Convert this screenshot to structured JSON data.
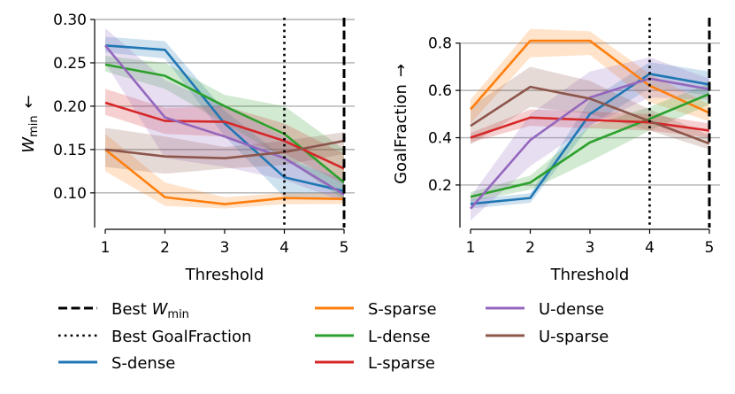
{
  "chart_data": [
    {
      "type": "line",
      "panel": "left",
      "ylabel": "W",
      "ylabel_sub": "min",
      "ylabel_arrow": "←",
      "xlabel": "Threshold",
      "x": [
        1,
        2,
        3,
        4,
        5
      ],
      "x_ticks": [
        "1",
        "2",
        "3",
        "4",
        "5"
      ],
      "ylim": [
        0.06,
        0.3
      ],
      "y_ticks": [
        0.1,
        0.15,
        0.2,
        0.25,
        0.3
      ],
      "y_tick_labels": [
        "0.10",
        "0.15",
        "0.20",
        "0.25",
        "0.30"
      ],
      "grid": "horizontal",
      "vlines": [
        {
          "x": 4,
          "style": "dotted",
          "meaning": "Best GoalFraction"
        },
        {
          "x": 5,
          "style": "dashed",
          "meaning": "Best W_min"
        }
      ],
      "series": [
        {
          "name": "S-dense",
          "color": "#1f77b4",
          "values": [
            0.27,
            0.265,
            0.18,
            0.118,
            0.102
          ],
          "lower": [
            0.262,
            0.255,
            0.165,
            0.095,
            0.092
          ],
          "upper": [
            0.28,
            0.275,
            0.195,
            0.14,
            0.115
          ]
        },
        {
          "name": "S-sparse",
          "color": "#ff7f0e",
          "values": [
            0.15,
            0.095,
            0.087,
            0.094,
            0.093
          ],
          "lower": [
            0.125,
            0.085,
            0.082,
            0.087,
            0.087
          ],
          "upper": [
            0.168,
            0.112,
            0.095,
            0.1,
            0.1
          ]
        },
        {
          "name": "L-dense",
          "color": "#2ca02c",
          "values": [
            0.248,
            0.235,
            0.2,
            0.168,
            0.112
          ],
          "lower": [
            0.24,
            0.22,
            0.18,
            0.14,
            0.092
          ],
          "upper": [
            0.258,
            0.25,
            0.213,
            0.2,
            0.15
          ]
        },
        {
          "name": "L-sparse",
          "color": "#d62728",
          "values": [
            0.204,
            0.183,
            0.182,
            0.16,
            0.128
          ],
          "lower": [
            0.19,
            0.168,
            0.165,
            0.145,
            0.11
          ],
          "upper": [
            0.22,
            0.198,
            0.2,
            0.18,
            0.145
          ]
        },
        {
          "name": "U-dense",
          "color": "#9467bd",
          "values": [
            0.27,
            0.187,
            0.165,
            0.14,
            0.098
          ],
          "lower": [
            0.25,
            0.14,
            0.13,
            0.115,
            0.09
          ],
          "upper": [
            0.29,
            0.23,
            0.2,
            0.165,
            0.112
          ]
        },
        {
          "name": "U-sparse",
          "color": "#8c564b",
          "values": [
            0.15,
            0.142,
            0.14,
            0.147,
            0.16
          ],
          "lower": [
            0.13,
            0.122,
            0.128,
            0.132,
            0.145
          ],
          "upper": [
            0.175,
            0.165,
            0.153,
            0.16,
            0.17
          ]
        }
      ]
    },
    {
      "type": "line",
      "panel": "right",
      "ylabel": "GoalFraction",
      "ylabel_arrow": "→",
      "xlabel": "Threshold",
      "x": [
        1,
        2,
        3,
        4,
        5
      ],
      "x_ticks": [
        "1",
        "2",
        "3",
        "4",
        "5"
      ],
      "ylim": [
        0.02,
        0.9
      ],
      "y_ticks": [
        0.2,
        0.4,
        0.6,
        0.8
      ],
      "y_tick_labels": [
        "0.2",
        "0.4",
        "0.6",
        "0.8"
      ],
      "grid": "horizontal",
      "vlines": [
        {
          "x": 4,
          "style": "dotted",
          "meaning": "Best GoalFraction"
        },
        {
          "x": 5,
          "style": "dashed",
          "meaning": "Best W_min"
        }
      ],
      "series": [
        {
          "name": "S-dense",
          "color": "#1f77b4",
          "values": [
            0.12,
            0.145,
            0.5,
            0.67,
            0.625
          ],
          "lower": [
            0.1,
            0.125,
            0.45,
            0.61,
            0.58
          ],
          "upper": [
            0.14,
            0.165,
            0.56,
            0.72,
            0.68
          ]
        },
        {
          "name": "S-sparse",
          "color": "#ff7f0e",
          "values": [
            0.52,
            0.81,
            0.81,
            0.62,
            0.505
          ],
          "lower": [
            0.46,
            0.74,
            0.75,
            0.55,
            0.47
          ],
          "upper": [
            0.56,
            0.86,
            0.85,
            0.67,
            0.54
          ]
        },
        {
          "name": "L-dense",
          "color": "#2ca02c",
          "values": [
            0.15,
            0.21,
            0.38,
            0.48,
            0.585
          ],
          "lower": [
            0.13,
            0.18,
            0.3,
            0.43,
            0.54
          ],
          "upper": [
            0.17,
            0.24,
            0.45,
            0.53,
            0.63
          ]
        },
        {
          "name": "L-sparse",
          "color": "#d62728",
          "values": [
            0.4,
            0.485,
            0.475,
            0.465,
            0.43
          ],
          "lower": [
            0.38,
            0.45,
            0.44,
            0.43,
            0.4
          ],
          "upper": [
            0.42,
            0.52,
            0.51,
            0.5,
            0.46
          ]
        },
        {
          "name": "U-dense",
          "color": "#9467bd",
          "values": [
            0.1,
            0.39,
            0.57,
            0.65,
            0.605
          ],
          "lower": [
            0.05,
            0.28,
            0.45,
            0.57,
            0.56
          ],
          "upper": [
            0.15,
            0.5,
            0.68,
            0.74,
            0.65
          ]
        },
        {
          "name": "U-sparse",
          "color": "#8c564b",
          "values": [
            0.45,
            0.615,
            0.565,
            0.47,
            0.375
          ],
          "lower": [
            0.37,
            0.53,
            0.5,
            0.43,
            0.35
          ],
          "upper": [
            0.53,
            0.7,
            0.64,
            0.52,
            0.41
          ]
        }
      ]
    }
  ],
  "legend": {
    "items": [
      {
        "label": "Best W",
        "sub": "min",
        "kind": "dashed",
        "color": "#000000"
      },
      {
        "label": "Best GoalFraction",
        "sub": "",
        "kind": "dotted",
        "color": "#000000"
      },
      {
        "label": "S-dense",
        "sub": "",
        "kind": "solid",
        "color": "#1f77b4"
      },
      {
        "label": "S-sparse",
        "sub": "",
        "kind": "solid",
        "color": "#ff7f0e"
      },
      {
        "label": "L-dense",
        "sub": "",
        "kind": "solid",
        "color": "#2ca02c"
      },
      {
        "label": "L-sparse",
        "sub": "",
        "kind": "solid",
        "color": "#d62728"
      },
      {
        "label": "U-dense",
        "sub": "",
        "kind": "solid",
        "color": "#9467bd"
      },
      {
        "label": "U-sparse",
        "sub": "",
        "kind": "solid",
        "color": "#8c564b"
      }
    ]
  }
}
